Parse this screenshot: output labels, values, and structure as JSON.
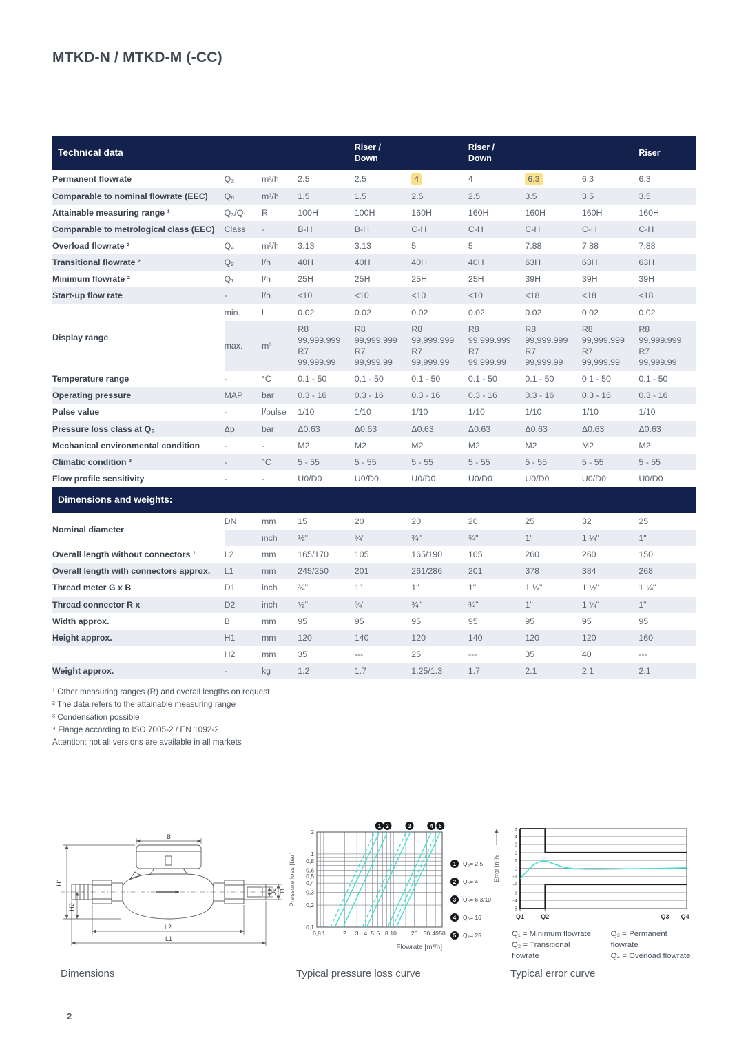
{
  "page": {
    "title": "MTKD-N / MTKD-M (-CC)",
    "page_number": "2"
  },
  "table": {
    "header_title": "Technical data",
    "col_headers": [
      "",
      "Riser /\nDown",
      "",
      "Riser /\nDown",
      "",
      "",
      "Riser"
    ],
    "rows": [
      {
        "label": "Permanent flowrate",
        "sym": "Q₃",
        "unit": "m³/h",
        "values": [
          "2.5",
          "2.5",
          "4",
          "4",
          "6.3",
          "6.3",
          "6.3"
        ],
        "hl": [
          2,
          4
        ]
      },
      {
        "label": "Comparable to nominal flowrate (EEC)",
        "sym": "Qₙ",
        "unit": "m³/h",
        "values": [
          "1.5",
          "1.5",
          "2.5",
          "2.5",
          "3.5",
          "3.5",
          "3.5"
        ],
        "shade": true
      },
      {
        "label": "Attainable measuring range ¹",
        "sym": "Q₃/Q₁",
        "unit": "R",
        "values": [
          "100H",
          "100H",
          "160H",
          "160H",
          "160H",
          "160H",
          "160H"
        ]
      },
      {
        "label": "Comparable to metrological class (EEC)",
        "sym": "Class",
        "unit": "-",
        "values": [
          "B-H",
          "B-H",
          "C-H",
          "C-H",
          "C-H",
          "C-H",
          "C-H"
        ],
        "shade": true
      },
      {
        "label": "Overload flowrate ²",
        "sym": "Q₄",
        "unit": "m³/h",
        "values": [
          "3.13",
          "3.13",
          "5",
          "5",
          "7.88",
          "7.88",
          "7.88"
        ]
      },
      {
        "label": "Transitional flowrate ²",
        "sym": "Q₂",
        "unit": "l/h",
        "values": [
          "40H",
          "40H",
          "40H",
          "40H",
          "63H",
          "63H",
          "63H"
        ],
        "shade": true
      },
      {
        "label": "Minimum flowrate ²",
        "sym": "Q₁",
        "unit": "l/h",
        "values": [
          "25H",
          "25H",
          "25H",
          "25H",
          "39H",
          "39H",
          "39H"
        ]
      },
      {
        "label": "Start-up flow rate",
        "sym": "-",
        "unit": "l/h",
        "values": [
          "<10",
          "<10",
          "<10",
          "<10",
          "<18",
          "<18",
          "<18"
        ],
        "shade": true
      },
      {
        "label": "Display range",
        "rowspan": 2,
        "sym": "min.",
        "unit": "l",
        "values": [
          "0.02",
          "0.02",
          "0.02",
          "0.02",
          "0.02",
          "0.02",
          "0.02"
        ]
      },
      {
        "cont": true,
        "sym": "max.",
        "unit": "m³",
        "shade": true,
        "values": [
          "R8\n99,999.999\nR7\n99,999.99",
          "R8\n99,999.999\nR7\n99,999.99",
          "R8\n99,999.999\nR7\n99,999.99",
          "R8\n99,999.999\nR7\n99,999.99",
          "R8\n99,999.999\nR7\n99,999.99",
          "R8\n99,999.999\nR7\n99,999.99",
          "R8\n99,999.999\nR7\n99,999.99"
        ]
      },
      {
        "label": "Temperature range",
        "sym": "-",
        "unit": "°C",
        "values": [
          "0.1 - 50",
          "0.1 - 50",
          "0.1 - 50",
          "0.1 - 50",
          "0.1 - 50",
          "0.1 - 50",
          "0.1 - 50"
        ]
      },
      {
        "label": "Operating pressure",
        "sym": "MAP",
        "unit": "bar",
        "values": [
          "0.3 - 16",
          "0.3 - 16",
          "0.3 - 16",
          "0.3 - 16",
          "0.3 - 16",
          "0.3 - 16",
          "0.3 - 16"
        ],
        "shade": true
      },
      {
        "label": "Pulse value",
        "sym": "-",
        "unit": "l/pulse",
        "values": [
          "1/10",
          "1/10",
          "1/10",
          "1/10",
          "1/10",
          "1/10",
          "1/10"
        ]
      },
      {
        "label": "Pressure loss class at Q₃",
        "sym": "Δp",
        "unit": "bar",
        "values": [
          "Δ0.63",
          "Δ0.63",
          "Δ0.63",
          "Δ0.63",
          "Δ0.63",
          "Δ0.63",
          "Δ0.63"
        ],
        "shade": true
      },
      {
        "label": "Mechanical environmental condition",
        "sym": "-",
        "unit": "-",
        "values": [
          "M2",
          "M2",
          "M2",
          "M2",
          "M2",
          "M2",
          "M2"
        ]
      },
      {
        "label": "Climatic  condition ³",
        "sym": "-",
        "unit": "°C",
        "values": [
          "5 - 55",
          "5 - 55",
          "5 - 55",
          "5 - 55",
          "5 - 55",
          "5 - 55",
          "5 - 55"
        ],
        "shade": true
      },
      {
        "label": "Flow profile sensitivity",
        "sym": "-",
        "unit": "-",
        "values": [
          "U0/D0",
          "U0/D0",
          "U0/D0",
          "U0/D0",
          "U0/D0",
          "U0/D0",
          "U0/D0"
        ]
      }
    ],
    "section2_title": "Dimensions and weights:",
    "rows2": [
      {
        "label": "Nominal diameter",
        "rowspan": 2,
        "sym": "DN",
        "unit": "mm",
        "values": [
          "15",
          "20",
          "20",
          "20",
          "25",
          "32",
          "25"
        ]
      },
      {
        "cont": true,
        "sym": "",
        "unit": "inch",
        "shade": true,
        "values": [
          "½\"",
          "¾\"",
          "¾\"",
          "¾\"",
          "1\"",
          "1 ¼\"",
          "1\""
        ]
      },
      {
        "label": "Overall length without connectors ¹",
        "sym": "L2",
        "unit": "mm",
        "values": [
          "165/170",
          "105",
          "165/190",
          "105",
          "260",
          "260",
          "150"
        ]
      },
      {
        "label": "Overall length with connectors approx.",
        "sym": "L1",
        "unit": "mm",
        "values": [
          "245/250",
          "201",
          "261/286",
          "201",
          "378",
          "384",
          "268"
        ],
        "shade": true
      },
      {
        "label": "Thread meter G x B",
        "sym": "D1",
        "unit": "inch",
        "values": [
          "¾\"",
          "1\"",
          "1\"",
          "1\"",
          "1 ¼\"",
          "1 ½\"",
          "1 ¼\""
        ]
      },
      {
        "label": "Thread connector R x",
        "sym": "D2",
        "unit": "inch",
        "values": [
          "½\"",
          "¾\"",
          "¾\"",
          "¾\"",
          "1\"",
          "1 ¼\"",
          "1\""
        ],
        "shade": true
      },
      {
        "label": "Width approx.",
        "sym": "B",
        "unit": "mm",
        "values": [
          "95",
          "95",
          "95",
          "95",
          "95",
          "95",
          "95"
        ]
      },
      {
        "label": "Height approx.",
        "sym": "H1",
        "unit": "mm",
        "values": [
          "120",
          "140",
          "120",
          "140",
          "120",
          "120",
          "160"
        ],
        "shade": true
      },
      {
        "label": "",
        "sym": "H2",
        "unit": "mm",
        "values": [
          "35",
          "---",
          "25",
          "---",
          "35",
          "40",
          "---"
        ]
      },
      {
        "label": "Weight approx.",
        "sym": "-",
        "unit": "kg",
        "values": [
          "1.2",
          "1.7",
          "1.25/1.3",
          "1.7",
          "2.1",
          "2.1",
          "2.1"
        ],
        "shade": true
      }
    ],
    "footnotes": [
      "¹ Other measuring ranges (R) and overall lengths on request",
      "² The data refers to the attainable measuring range",
      "³ Condensation possible",
      "⁴ Flange according to ISO 7005-2 / EN 1092-2",
      "Attention: not all versions are available in all markets"
    ]
  },
  "figures": {
    "dimensions": {
      "caption": "Dimensions",
      "labels": {
        "B": "B",
        "H1": "H1",
        "H2": "H2",
        "L1": "L1",
        "L2": "L2",
        "D1": "D1",
        "D2": "D2"
      }
    }
  },
  "chart_data": [
    {
      "type": "line",
      "title": "Typical pressure loss curve",
      "xlabel": "Flowrate [m³/h]",
      "ylabel": "Pressure loss [bar]",
      "x_scale": "log",
      "y_scale": "log",
      "xlim": [
        0.8,
        50
      ],
      "ylim": [
        0.1,
        2
      ],
      "x_ticks": [
        0.8,
        1,
        2,
        3,
        4,
        5,
        6,
        8,
        10,
        20,
        30,
        40,
        50
      ],
      "x_tick_labels": [
        "0,8",
        "1",
        "2",
        "3",
        "4",
        "5",
        "6",
        "8",
        "10",
        "20",
        "30",
        "40",
        "50"
      ],
      "y_ticks": [
        2,
        1,
        0.8,
        0.6,
        0.5,
        0.4,
        0.3,
        0.2,
        0.1
      ],
      "y_tick_labels": [
        "2",
        "1",
        "0,8",
        "0,6",
        "0,5",
        "0,4",
        "0,3",
        "0,2",
        "0,1"
      ],
      "x_grid": [
        0.8,
        0.9,
        1,
        2,
        3,
        4,
        5,
        6,
        7,
        8,
        9,
        10,
        15,
        20,
        30,
        40,
        50
      ],
      "y_grid": [
        0.1,
        0.2,
        0.3,
        0.4,
        0.5,
        0.6,
        0.7,
        0.8,
        0.9,
        1,
        2
      ],
      "grid": true,
      "legend_position": "right",
      "line_color": "#45dfcf",
      "series": [
        {
          "name": "curve-1",
          "style": "solid",
          "points": [
            [
              1.45,
              0.1
            ],
            [
              6.3,
              2
            ]
          ]
        },
        {
          "name": "curve-1-dashed",
          "style": "dashed",
          "points": [
            [
              1.25,
              0.1
            ],
            [
              5.4,
              2
            ]
          ]
        },
        {
          "name": "curve-2",
          "style": "solid",
          "points": [
            [
              1.9,
              0.1
            ],
            [
              8.2,
              2
            ]
          ]
        },
        {
          "name": "curve-3",
          "style": "solid",
          "points": [
            [
              4.15,
              0.1
            ],
            [
              17.5,
              2
            ]
          ]
        },
        {
          "name": "curve-3-dashed",
          "style": "dashed",
          "points": [
            [
              3.6,
              0.1
            ],
            [
              15.2,
              2
            ]
          ]
        },
        {
          "name": "curve-4",
          "style": "solid",
          "points": [
            [
              8.3,
              0.1
            ],
            [
              35,
              2
            ]
          ]
        },
        {
          "name": "curve-5",
          "style": "solid",
          "points": [
            [
              11,
              0.1
            ],
            [
              47,
              2
            ]
          ]
        },
        {
          "name": "curve-5-dashed",
          "style": "dashed",
          "points": [
            [
              9.7,
              0.1
            ],
            [
              42,
              2
            ]
          ]
        }
      ],
      "markers": [
        {
          "n": "1",
          "x": 6.3
        },
        {
          "n": "2",
          "x": 8.2
        },
        {
          "n": "3",
          "x": 17
        },
        {
          "n": "4",
          "x": 35
        },
        {
          "n": "5",
          "x": 47
        }
      ],
      "legend": [
        {
          "n": "1",
          "label": "Q₃= 2,5"
        },
        {
          "n": "2",
          "label": "Q₃= 4"
        },
        {
          "n": "3",
          "label": "Q₃= 6,3/10"
        },
        {
          "n": "4",
          "label": "Q₃= 16"
        },
        {
          "n": "5",
          "label": "Q₃= 25"
        }
      ]
    },
    {
      "type": "line",
      "title": "Typical error curve",
      "ylabel": "Error in %",
      "ylim": [
        -5,
        5
      ],
      "y_ticks": [
        5,
        4,
        3,
        2,
        1,
        0,
        -1,
        -2,
        -3,
        -4,
        -5
      ],
      "x_tick_labels": [
        "Q1",
        "Q2",
        "Q3",
        "Q4"
      ],
      "x_tick_pos": [
        0,
        0.15,
        0.87,
        0.99
      ],
      "grid": true,
      "line_color": "#45dfcf",
      "envelope": {
        "step_x": 0.15,
        "inner": 5,
        "outer": 2
      },
      "curve": [
        [
          0,
          -1.25
        ],
        [
          0.025,
          -0.7
        ],
        [
          0.05,
          -0.15
        ],
        [
          0.08,
          0.45
        ],
        [
          0.11,
          0.8
        ],
        [
          0.14,
          0.95
        ],
        [
          0.17,
          0.85
        ],
        [
          0.2,
          0.6
        ],
        [
          0.24,
          0.3
        ],
        [
          0.28,
          0.1
        ],
        [
          0.33,
          -0.03
        ],
        [
          0.4,
          -0.07
        ],
        [
          0.5,
          -0.07
        ],
        [
          0.65,
          -0.03
        ],
        [
          0.8,
          0.02
        ],
        [
          0.92,
          0.06
        ],
        [
          1,
          0.1
        ]
      ],
      "legend_left": [
        "Q₁ = Minimum flowrate",
        "Q₂ = Transitional flowrate"
      ],
      "legend_right": [
        "Q₃ = Permanent flowrate",
        "Q₄ = Overload flowrate"
      ]
    }
  ]
}
